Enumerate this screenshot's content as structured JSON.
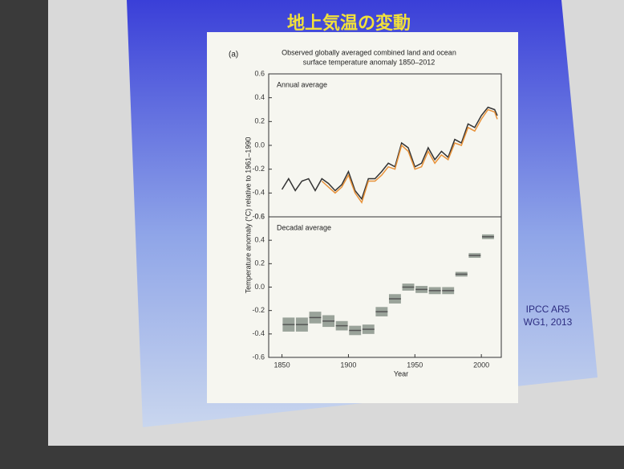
{
  "slide_title": "地上気温の変動",
  "source_note": [
    "IPCC AR5",
    "WG1, 2013"
  ],
  "chart_data": [
    {
      "type": "line",
      "panel_label": "(a)",
      "title": "Observed globally averaged combined land and ocean",
      "subtitle": "surface temperature anomaly 1850–2012",
      "annotation": "Annual average",
      "ylabel": "Temperature anomaly (°C) relative to 1961–1990",
      "x": [
        1850,
        1855,
        1860,
        1865,
        1870,
        1875,
        1880,
        1885,
        1890,
        1895,
        1900,
        1905,
        1910,
        1915,
        1920,
        1925,
        1930,
        1935,
        1940,
        1945,
        1950,
        1955,
        1960,
        1965,
        1970,
        1975,
        1980,
        1985,
        1990,
        1995,
        2000,
        2005,
        2010,
        2012
      ],
      "series": [
        {
          "color": "#333333",
          "values": [
            -0.37,
            -0.28,
            -0.38,
            -0.3,
            -0.28,
            -0.38,
            -0.28,
            -0.32,
            -0.38,
            -0.33,
            -0.22,
            -0.38,
            -0.45,
            -0.28,
            -0.28,
            -0.22,
            -0.15,
            -0.18,
            0.02,
            -0.02,
            -0.18,
            -0.15,
            -0.02,
            -0.12,
            -0.05,
            -0.1,
            0.05,
            0.02,
            0.18,
            0.15,
            0.25,
            0.32,
            0.3,
            0.25
          ]
        },
        {
          "color": "#e8923a",
          "values": [
            null,
            null,
            null,
            null,
            null,
            null,
            -0.3,
            -0.35,
            -0.4,
            -0.35,
            -0.25,
            -0.4,
            -0.48,
            -0.3,
            -0.3,
            -0.25,
            -0.18,
            -0.2,
            0.0,
            -0.05,
            -0.2,
            -0.18,
            -0.05,
            -0.15,
            -0.08,
            -0.12,
            0.02,
            0.0,
            0.15,
            0.12,
            0.22,
            0.3,
            0.28,
            0.22
          ]
        }
      ],
      "xlim": [
        1840,
        2015
      ],
      "ylim": [
        -0.6,
        0.6
      ],
      "yticks": [
        -0.6,
        -0.4,
        -0.2,
        {
          "value": 0,
          "label": "0.0"
        },
        0.2,
        0.4,
        0.6
      ]
    },
    {
      "type": "decadal",
      "annotation": "Decadal average",
      "xlabel": "Year",
      "x": [
        1855,
        1865,
        1875,
        1885,
        1895,
        1905,
        1915,
        1925,
        1935,
        1945,
        1955,
        1965,
        1975,
        1985,
        1995,
        2005
      ],
      "values": [
        -0.32,
        -0.32,
        -0.26,
        -0.29,
        -0.33,
        -0.37,
        -0.36,
        -0.21,
        -0.1,
        0.0,
        -0.02,
        -0.03,
        -0.03,
        0.11,
        0.27,
        0.43
      ],
      "errors": [
        0.06,
        0.06,
        0.05,
        0.05,
        0.04,
        0.04,
        0.04,
        0.04,
        0.04,
        0.03,
        0.03,
        0.03,
        0.03,
        0.02,
        0.02,
        0.02
      ],
      "color": "#9aa39a",
      "line_color": "#555555",
      "xlim": [
        1840,
        2015
      ],
      "ylim": [
        -0.6,
        0.6
      ],
      "xticks": [
        1850,
        1900,
        1950,
        2000
      ],
      "yticks": [
        -0.6,
        -0.4,
        -0.2,
        {
          "value": 0,
          "label": "0.0"
        },
        0.2,
        0.4,
        0.6
      ]
    }
  ]
}
